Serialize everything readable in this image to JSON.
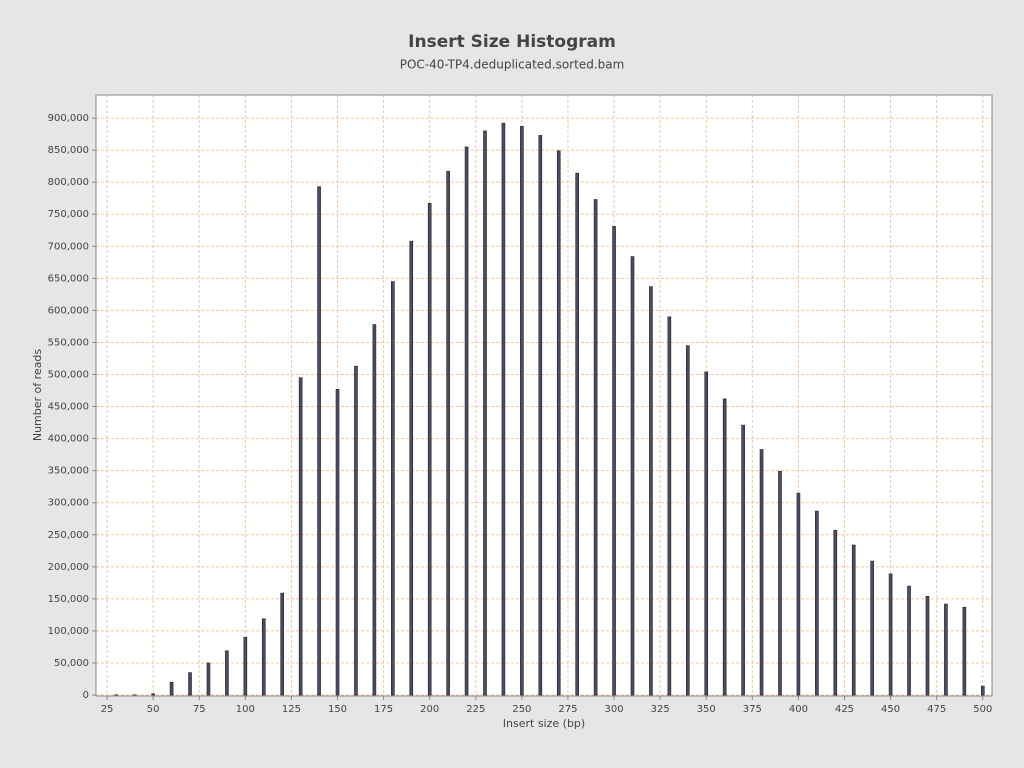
{
  "chart_data": {
    "type": "bar",
    "title": "Insert Size Histogram",
    "subtitle": "POC-40-TP4.deduplicated.sorted.bam",
    "x_label": "Insert size (bp)",
    "y_label": "Number of reads",
    "x": [
      30,
      40,
      50,
      60,
      70,
      80,
      90,
      100,
      110,
      120,
      130,
      140,
      150,
      160,
      170,
      180,
      190,
      200,
      210,
      220,
      230,
      240,
      250,
      260,
      270,
      280,
      290,
      300,
      310,
      320,
      330,
      340,
      350,
      360,
      370,
      380,
      390,
      400,
      410,
      420,
      430,
      440,
      450,
      460,
      470,
      480,
      490,
      500
    ],
    "values": [
      500,
      300,
      2000,
      20000,
      35000,
      50000,
      69000,
      90000,
      119000,
      159000,
      495000,
      793000,
      477000,
      513000,
      578000,
      645000,
      708000,
      767000,
      817000,
      855000,
      880000,
      892000,
      887000,
      873000,
      849000,
      814000,
      773000,
      731000,
      684000,
      637000,
      590000,
      545000,
      504000,
      462000,
      421000,
      383000,
      349000,
      315000,
      287000,
      257000,
      234000,
      209000,
      189000,
      170000,
      154000,
      142000,
      137000,
      14000
    ],
    "color": "#4c4c66",
    "xlim": [
      19,
      505
    ],
    "ylim": [
      -1500,
      936000
    ],
    "xticks": [
      25,
      50,
      75,
      100,
      125,
      150,
      175,
      200,
      225,
      250,
      275,
      300,
      325,
      350,
      375,
      400,
      425,
      450,
      475,
      500
    ],
    "yticks": [
      0,
      {
        "value": 50000,
        "label": "50,000"
      },
      {
        "value": 100000,
        "label": "100,000"
      },
      {
        "value": 150000,
        "label": "150,000"
      },
      {
        "value": 200000,
        "label": "200,000"
      },
      {
        "value": 250000,
        "label": "250,000"
      },
      {
        "value": 300000,
        "label": "300,000"
      },
      {
        "value": 350000,
        "label": "350,000"
      },
      {
        "value": 400000,
        "label": "400,000"
      },
      {
        "value": 450000,
        "label": "450,000"
      },
      {
        "value": 500000,
        "label": "500,000"
      },
      {
        "value": 550000,
        "label": "550,000"
      },
      {
        "value": 600000,
        "label": "600,000"
      },
      {
        "value": 650000,
        "label": "650,000"
      },
      {
        "value": 700000,
        "label": "700,000"
      },
      {
        "value": 750000,
        "label": "750,000"
      },
      {
        "value": 800000,
        "label": "800,000"
      },
      {
        "value": 850000,
        "label": "850,000"
      },
      {
        "value": 900000,
        "label": "900,000"
      }
    ],
    "grid": true
  }
}
